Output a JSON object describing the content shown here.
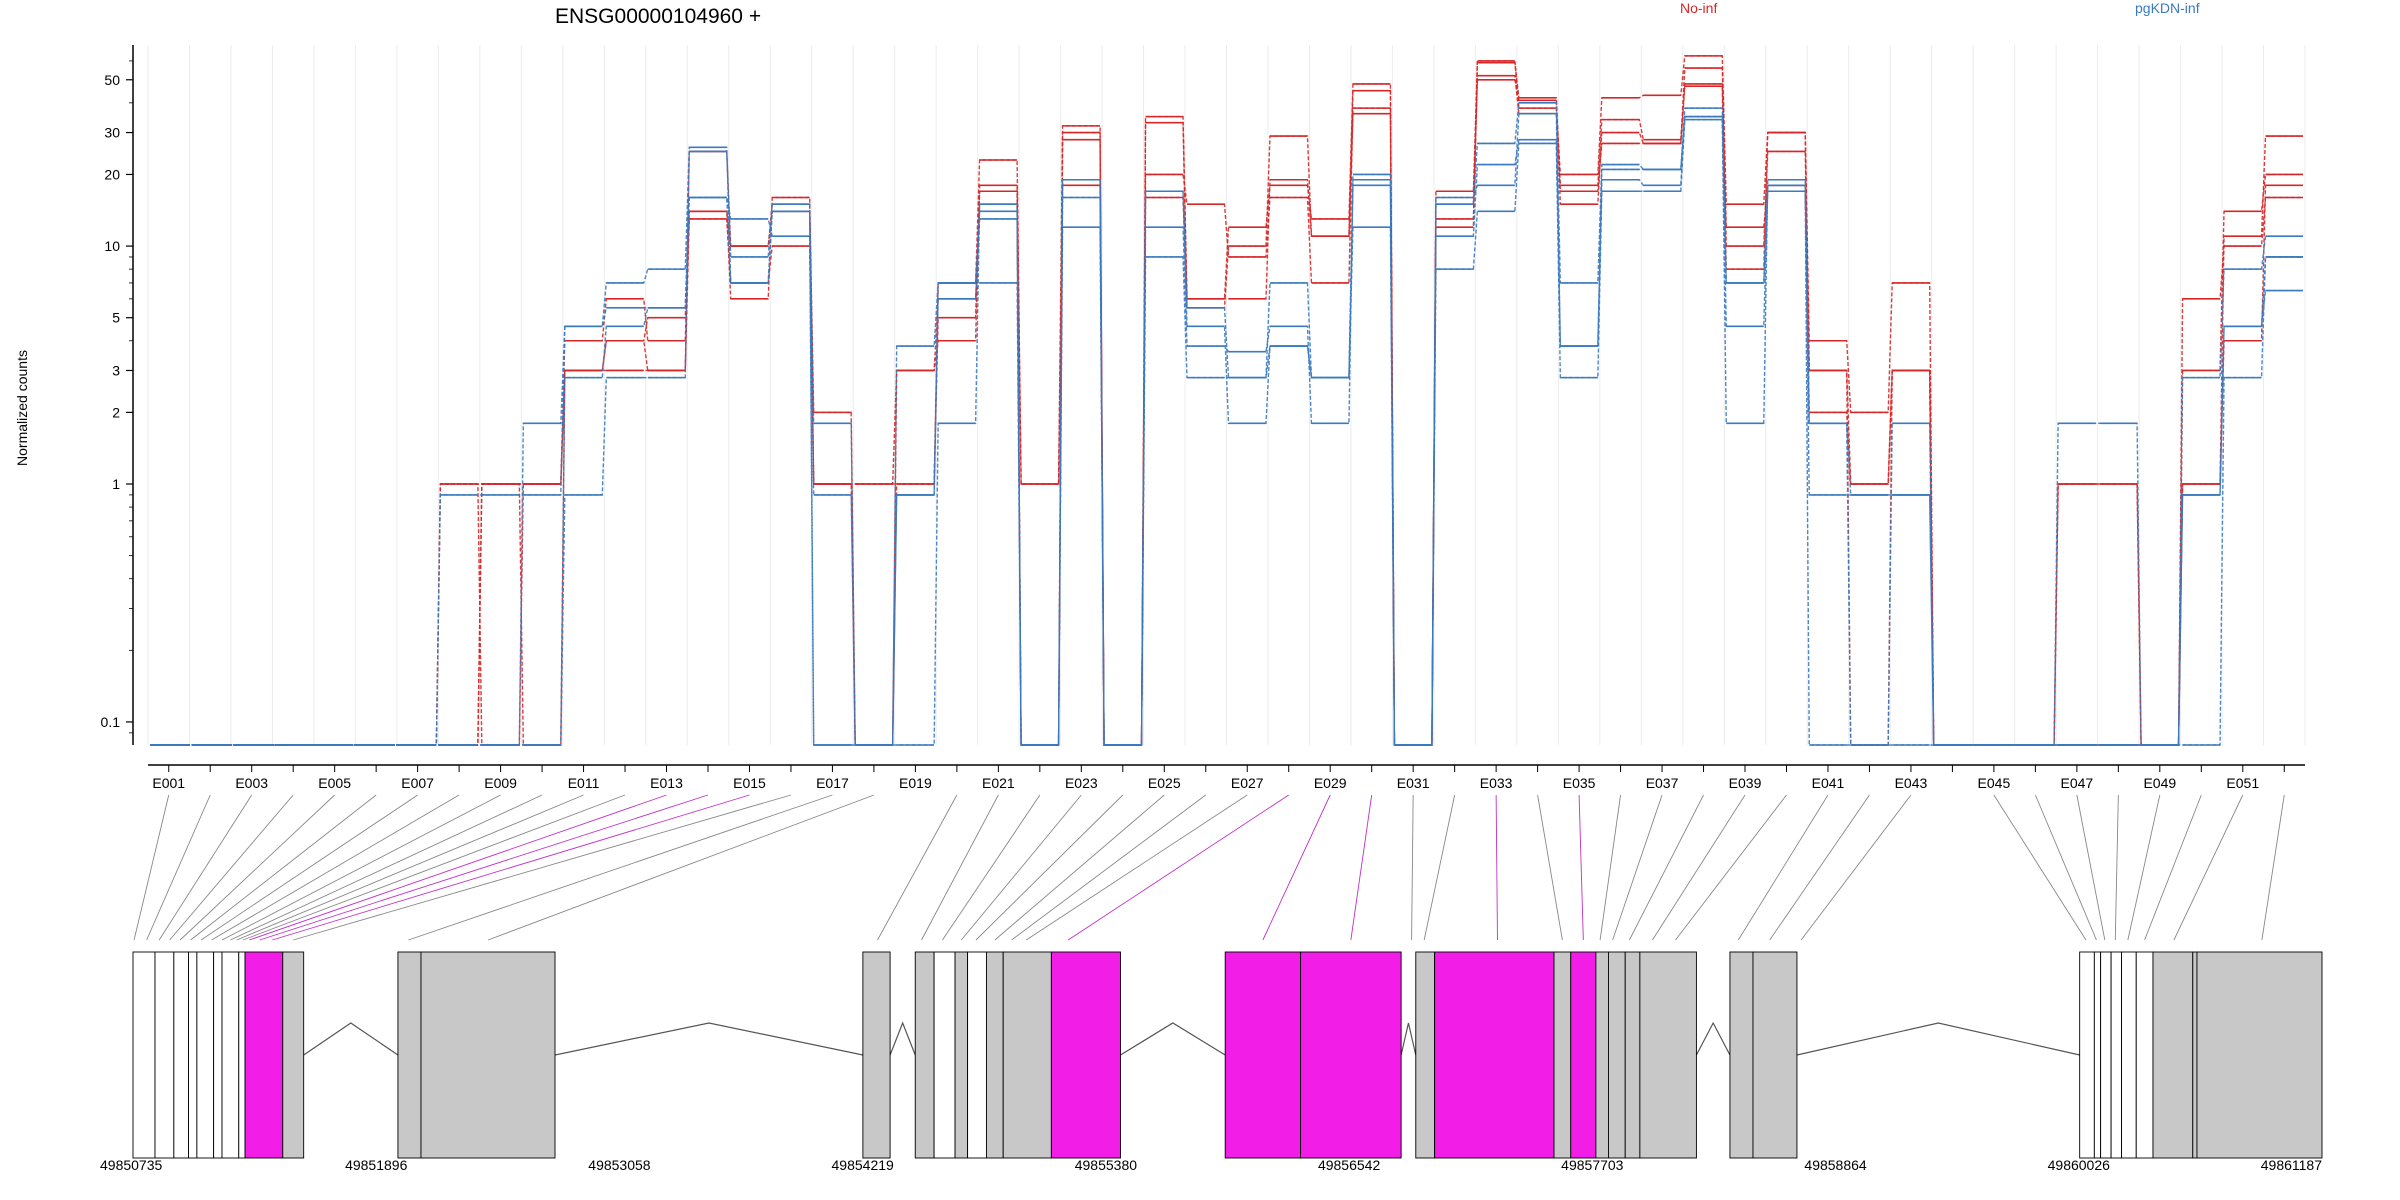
{
  "colors": {
    "group_a": "#d62728",
    "group_b": "#3a7abf",
    "exon_fill": "#c8c8c8",
    "exon_highlight": "#f21ee8",
    "connector": "#888888",
    "connector_highlight": "#c030c8"
  },
  "chart_data": {
    "type": "line",
    "title": "ENSG00000104960 +",
    "xlabel": "",
    "ylabel": "Normalized counts",
    "yscale": "log",
    "ylim": [
      0.08,
      70
    ],
    "grid": true,
    "legend_placement": "top-right",
    "legend": [
      {
        "name": "No-inf",
        "color": "#d62728"
      },
      {
        "name": "pgKDN-inf",
        "color": "#3a7abf"
      }
    ],
    "y_ticks": [
      0.1,
      1,
      2,
      3,
      5,
      10,
      20,
      30,
      50
    ],
    "y_tick_labels": [
      "0.1",
      "1",
      "2",
      "3",
      "5",
      "10",
      "20",
      "30",
      "50"
    ],
    "exons": [
      "E001",
      "E002",
      "E003",
      "E004",
      "E005",
      "E006",
      "E007",
      "E008",
      "E009",
      "E010",
      "E011",
      "E012",
      "E013",
      "E014",
      "E015",
      "E016",
      "E017",
      "E018",
      "E019",
      "E020",
      "E021",
      "E022",
      "E023",
      "E024",
      "E025",
      "E026",
      "E027",
      "E028",
      "E029",
      "E030",
      "E031",
      "E032",
      "E033",
      "E034",
      "E035",
      "E036",
      "E037",
      "E038",
      "E039",
      "E040",
      "E041",
      "E042",
      "E043",
      "E044",
      "E045",
      "E046",
      "E047",
      "E048",
      "E049",
      "E050",
      "E051",
      "E052"
    ],
    "series": [
      {
        "group": "No-inf",
        "values": [
          0.08,
          0.08,
          0.08,
          0.08,
          0.08,
          0.08,
          0.08,
          1,
          0.08,
          1,
          3,
          4,
          5,
          14,
          10,
          14,
          1,
          1,
          3,
          6,
          15,
          0.08,
          28,
          0.08,
          33,
          5.5,
          10,
          29,
          11,
          45,
          0.08,
          17,
          60,
          38,
          20,
          42,
          43,
          63,
          15,
          30,
          4,
          2,
          7,
          0.08,
          0.08,
          0.08,
          1,
          1,
          0.08,
          1,
          11,
          29
        ]
      },
      {
        "group": "No-inf",
        "values": [
          0.08,
          0.08,
          0.08,
          0.08,
          0.08,
          0.08,
          0.08,
          0.08,
          1,
          1,
          3,
          4,
          3,
          25,
          10,
          15,
          2,
          0.08,
          3,
          4,
          18,
          1,
          32,
          0.08,
          35,
          6,
          12,
          18,
          13,
          48,
          0.08,
          13,
          52,
          36,
          18,
          34,
          28,
          48,
          10,
          25,
          3,
          1,
          3,
          0.08,
          0.08,
          0.08,
          0.08,
          0.08,
          0.08,
          3,
          14,
          20
        ]
      },
      {
        "group": "No-inf",
        "values": [
          0.08,
          0.08,
          0.08,
          0.08,
          0.08,
          0.08,
          0.08,
          0.08,
          1,
          1,
          4,
          6,
          4,
          14,
          6,
          16,
          1,
          0.08,
          1,
          7,
          23,
          1,
          18,
          0.08,
          20,
          15,
          9,
          16,
          7,
          38,
          0.08,
          15,
          50,
          41,
          17,
          27,
          27,
          56,
          12,
          18,
          2,
          1,
          3,
          0.08,
          0.08,
          0.08,
          0.08,
          0.08,
          0.08,
          6,
          10,
          16
        ]
      },
      {
        "group": "No-inf",
        "values": [
          0.08,
          0.08,
          0.08,
          0.08,
          0.08,
          0.08,
          0.08,
          1,
          1,
          0.08,
          3,
          3,
          3,
          13,
          7,
          10,
          1,
          1,
          1,
          5,
          17,
          0.08,
          30,
          0.08,
          16,
          6,
          6,
          19,
          11,
          36,
          0.08,
          12,
          59,
          42,
          15,
          30,
          27,
          47,
          8,
          30,
          3,
          0.08,
          3,
          0.08,
          0.08,
          0.08,
          1,
          1,
          0.08,
          1,
          4,
          18
        ]
      },
      {
        "group": "pgKDN-inf",
        "values": [
          0.08,
          0.08,
          0.08,
          0.08,
          0.08,
          0.08,
          0.08,
          0.08,
          0.08,
          1.8,
          4.6,
          7,
          8,
          26,
          7,
          14,
          1.8,
          0.08,
          3.8,
          7,
          14,
          0.08,
          19,
          0.08,
          17,
          5.5,
          2.8,
          7,
          2.8,
          20,
          0.08,
          15,
          27,
          40,
          7,
          22,
          21,
          38,
          7,
          18,
          1.8,
          0.08,
          1.8,
          0.08,
          0.08,
          0.08,
          1.8,
          1.8,
          0.08,
          2.8,
          8,
          11
        ]
      },
      {
        "group": "pgKDN-inf",
        "values": [
          0.08,
          0.08,
          0.08,
          0.08,
          0.08,
          0.08,
          0.08,
          0.08,
          0.08,
          0.08,
          2.8,
          4.6,
          5.5,
          16,
          13,
          11,
          0.08,
          0.08,
          0.08,
          1.8,
          15,
          0.08,
          12,
          0.08,
          12,
          3.8,
          3.6,
          4.6,
          1.8,
          19,
          0.08,
          11,
          22,
          28,
          3.8,
          19,
          18,
          35,
          4.6,
          17,
          0.08,
          0.08,
          0.08,
          0.08,
          0.08,
          0.08,
          0.08,
          0.08,
          0.08,
          0.08,
          2.8,
          9
        ]
      },
      {
        "group": "pgKDN-inf",
        "values": [
          0.08,
          0.08,
          0.08,
          0.08,
          0.08,
          0.08,
          0.08,
          0.08,
          0.08,
          0.08,
          0.9,
          2.8,
          2.8,
          25,
          9,
          15,
          0.08,
          0.08,
          0.9,
          6,
          13,
          0.08,
          16,
          0.08,
          9,
          2.8,
          2.8,
          3.8,
          2.8,
          12,
          0.08,
          8,
          14,
          27,
          2.8,
          17,
          17,
          34,
          1.8,
          19,
          0.9,
          0.9,
          0.9,
          0.08,
          0.08,
          0.08,
          0.08,
          0.08,
          0.08,
          0.9,
          4.6,
          9
        ]
      },
      {
        "group": "pgKDN-inf",
        "values": [
          0.08,
          0.08,
          0.08,
          0.08,
          0.08,
          0.08,
          0.08,
          0.9,
          0.9,
          0.9,
          4.6,
          5.5,
          5.5,
          16,
          7,
          14,
          0.9,
          0.08,
          0.9,
          7,
          7,
          0.08,
          19,
          0.08,
          17,
          4.6,
          1.8,
          3.8,
          2.8,
          18,
          0.08,
          16,
          18,
          36,
          3.8,
          21,
          21,
          35,
          7,
          18,
          1.8,
          0.9,
          0.9,
          0.08,
          0.08,
          0.08,
          0.08,
          0.08,
          0.08,
          0.9,
          4.6,
          6.5
        ]
      }
    ],
    "x_ticks_genomic": [
      "49850735",
      "49851896",
      "49853058",
      "49854219",
      "49855380",
      "49856542",
      "49857703",
      "49858864",
      "49860026",
      "49861187"
    ],
    "genomic_range": [
      49850735,
      49861187
    ],
    "gene_exons": [
      {
        "start": 49850735,
        "end": 49850840,
        "fill": "white"
      },
      {
        "start": 49850840,
        "end": 49850930,
        "fill": "white"
      },
      {
        "start": 49850930,
        "end": 49851000,
        "fill": "white"
      },
      {
        "start": 49851000,
        "end": 49851040,
        "fill": "white"
      },
      {
        "start": 49851040,
        "end": 49851120,
        "fill": "white"
      },
      {
        "start": 49851120,
        "end": 49851160,
        "fill": "white"
      },
      {
        "start": 49851160,
        "end": 49851240,
        "fill": "white"
      },
      {
        "start": 49851240,
        "end": 49851270,
        "fill": "white"
      },
      {
        "start": 49851270,
        "end": 49851450,
        "fill": "highlight"
      },
      {
        "start": 49851450,
        "end": 49851550,
        "fill": "gray"
      },
      {
        "start": 49852000,
        "end": 49852110,
        "fill": "gray"
      },
      {
        "start": 49852110,
        "end": 49852750,
        "fill": "gray"
      },
      {
        "start": 49854220,
        "end": 49854350,
        "fill": "gray"
      },
      {
        "start": 49854470,
        "end": 49854560,
        "fill": "gray"
      },
      {
        "start": 49854560,
        "end": 49854660,
        "fill": "white"
      },
      {
        "start": 49854660,
        "end": 49854720,
        "fill": "gray"
      },
      {
        "start": 49854720,
        "end": 49854810,
        "fill": "white"
      },
      {
        "start": 49854810,
        "end": 49854890,
        "fill": "gray"
      },
      {
        "start": 49854890,
        "end": 49855120,
        "fill": "gray"
      },
      {
        "start": 49855120,
        "end": 49855450,
        "fill": "highlight"
      },
      {
        "start": 49855950,
        "end": 49856310,
        "fill": "highlight"
      },
      {
        "start": 49856310,
        "end": 49856790,
        "fill": "highlight"
      },
      {
        "start": 49856860,
        "end": 49856950,
        "fill": "gray"
      },
      {
        "start": 49856950,
        "end": 49857520,
        "fill": "highlight"
      },
      {
        "start": 49857520,
        "end": 49857600,
        "fill": "gray"
      },
      {
        "start": 49857600,
        "end": 49857720,
        "fill": "highlight"
      },
      {
        "start": 49857720,
        "end": 49857780,
        "fill": "gray"
      },
      {
        "start": 49857780,
        "end": 49857860,
        "fill": "gray"
      },
      {
        "start": 49857860,
        "end": 49857930,
        "fill": "gray"
      },
      {
        "start": 49857930,
        "end": 49858200,
        "fill": "gray"
      },
      {
        "start": 49858360,
        "end": 49858470,
        "fill": "gray"
      },
      {
        "start": 49858470,
        "end": 49858680,
        "fill": "gray"
      },
      {
        "start": 49860030,
        "end": 49860100,
        "fill": "white"
      },
      {
        "start": 49860100,
        "end": 49860130,
        "fill": "white"
      },
      {
        "start": 49860130,
        "end": 49860180,
        "fill": "white"
      },
      {
        "start": 49860180,
        "end": 49860230,
        "fill": "white"
      },
      {
        "start": 49860230,
        "end": 49860300,
        "fill": "white"
      },
      {
        "start": 49860300,
        "end": 49860380,
        "fill": "white"
      },
      {
        "start": 49860380,
        "end": 49860570,
        "fill": "gray"
      },
      {
        "start": 49860570,
        "end": 49860590,
        "fill": "gray"
      },
      {
        "start": 49860590,
        "end": 49861187,
        "fill": "gray"
      }
    ],
    "exon_connections": [
      {
        "exon": 0,
        "gpos": 49850740
      },
      {
        "exon": 1,
        "gpos": 49850800
      },
      {
        "exon": 2,
        "gpos": 49850860
      },
      {
        "exon": 3,
        "gpos": 49850910
      },
      {
        "exon": 4,
        "gpos": 49850960
      },
      {
        "exon": 5,
        "gpos": 49851010
      },
      {
        "exon": 6,
        "gpos": 49851060
      },
      {
        "exon": 7,
        "gpos": 49851110
      },
      {
        "exon": 8,
        "gpos": 49851160
      },
      {
        "exon": 9,
        "gpos": 49851200
      },
      {
        "exon": 10,
        "gpos": 49851230
      },
      {
        "exon": 11,
        "gpos": 49851260
      },
      {
        "exon": 12,
        "gpos": 49851290,
        "highlight": true
      },
      {
        "exon": 13,
        "gpos": 49851340,
        "highlight": true
      },
      {
        "exon": 14,
        "gpos": 49851400,
        "highlight": true
      },
      {
        "exon": 15,
        "gpos": 49851500
      },
      {
        "exon": 16,
        "gpos": 49852050
      },
      {
        "exon": 17,
        "gpos": 49852430
      },
      {
        "exon": 19,
        "gpos": 49854290
      },
      {
        "exon": 20,
        "gpos": 49854500
      },
      {
        "exon": 21,
        "gpos": 49854600
      },
      {
        "exon": 22,
        "gpos": 49854690
      },
      {
        "exon": 23,
        "gpos": 49854760
      },
      {
        "exon": 24,
        "gpos": 49854850
      },
      {
        "exon": 25,
        "gpos": 49854930
      },
      {
        "exon": 26,
        "gpos": 49855000
      },
      {
        "exon": 27,
        "gpos": 49855200,
        "highlight": true
      },
      {
        "exon": 28,
        "gpos": 49856130,
        "highlight": true
      },
      {
        "exon": 29,
        "gpos": 49856550,
        "highlight": true
      },
      {
        "exon": 30,
        "gpos": 49856840
      },
      {
        "exon": 31,
        "gpos": 49856900
      },
      {
        "exon": 32,
        "gpos": 49857250,
        "highlight": true
      },
      {
        "exon": 33,
        "gpos": 49857560
      },
      {
        "exon": 34,
        "gpos": 49857660,
        "highlight": true
      },
      {
        "exon": 35,
        "gpos": 49857740
      },
      {
        "exon": 36,
        "gpos": 49857800
      },
      {
        "exon": 37,
        "gpos": 49857880
      },
      {
        "exon": 38,
        "gpos": 49857990
      },
      {
        "exon": 39,
        "gpos": 49858100
      },
      {
        "exon": 40,
        "gpos": 49858400
      },
      {
        "exon": 41,
        "gpos": 49858550
      },
      {
        "exon": 42,
        "gpos": 49858700
      },
      {
        "exon": 44,
        "gpos": 49860060
      },
      {
        "exon": 45,
        "gpos": 49860110
      },
      {
        "exon": 46,
        "gpos": 49860150
      },
      {
        "exon": 47,
        "gpos": 49860200
      },
      {
        "exon": 48,
        "gpos": 49860260
      },
      {
        "exon": 49,
        "gpos": 49860340
      },
      {
        "exon": 50,
        "gpos": 49860480
      },
      {
        "exon": 51,
        "gpos": 49860900
      }
    ]
  }
}
